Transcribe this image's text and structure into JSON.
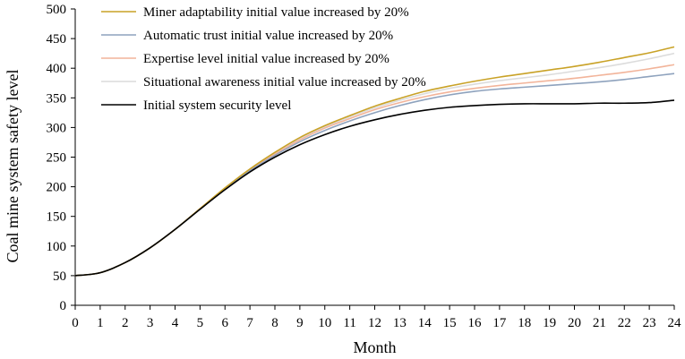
{
  "chart_data": {
    "type": "line",
    "title": "",
    "xlabel": "Month",
    "ylabel": "Coal mine system safety level",
    "xlim": [
      0,
      24
    ],
    "ylim": [
      0,
      500
    ],
    "x_ticks": [
      0,
      1,
      2,
      3,
      4,
      5,
      6,
      7,
      8,
      9,
      10,
      11,
      12,
      13,
      14,
      15,
      16,
      17,
      18,
      19,
      20,
      21,
      22,
      23,
      24
    ],
    "y_ticks": [
      0,
      50,
      100,
      150,
      200,
      250,
      300,
      350,
      400,
      450,
      500
    ],
    "grid": false,
    "legend_position": "top-left",
    "x": [
      0,
      1,
      2,
      3,
      4,
      5,
      6,
      7,
      8,
      9,
      10,
      11,
      12,
      13,
      14,
      15,
      16,
      17,
      18,
      19,
      20,
      21,
      22,
      23,
      24
    ],
    "series": [
      {
        "name": "Miner adaptability initial value increased by 20%",
        "color": "#c9a227",
        "values": [
          50,
          55,
          72,
          97,
          128,
          163,
          198,
          230,
          258,
          283,
          303,
          320,
          336,
          349,
          361,
          370,
          378,
          385,
          391,
          397,
          403,
          410,
          418,
          426,
          436
        ]
      },
      {
        "name": "Automatic trust  initial value increased by 20%",
        "color": "#8ea2bd",
        "values": [
          50,
          55,
          72,
          97,
          128,
          162,
          196,
          227,
          253,
          276,
          295,
          311,
          325,
          337,
          347,
          355,
          361,
          365,
          368,
          371,
          374,
          377,
          381,
          386,
          391
        ]
      },
      {
        "name": "Expertise level initial value increased by 20%",
        "color": "#f2b49a",
        "values": [
          50,
          55,
          72,
          97,
          128,
          163,
          197,
          228,
          255,
          279,
          299,
          315,
          330,
          342,
          352,
          360,
          366,
          371,
          375,
          379,
          383,
          388,
          393,
          399,
          406
        ]
      },
      {
        "name": "Situational awareness initial value increased by 20%",
        "color": "#dcdcdc",
        "values": [
          50,
          55,
          72,
          97,
          128,
          163,
          197,
          229,
          256,
          281,
          301,
          318,
          333,
          346,
          357,
          366,
          373,
          379,
          384,
          389,
          395,
          401,
          408,
          416,
          425
        ]
      },
      {
        "name": "Initial system security level",
        "color": "#000000",
        "values": [
          50,
          55,
          72,
          97,
          128,
          162,
          195,
          225,
          250,
          271,
          288,
          302,
          313,
          322,
          329,
          334,
          337,
          339,
          340,
          340,
          340,
          341,
          341,
          342,
          346
        ]
      }
    ]
  }
}
